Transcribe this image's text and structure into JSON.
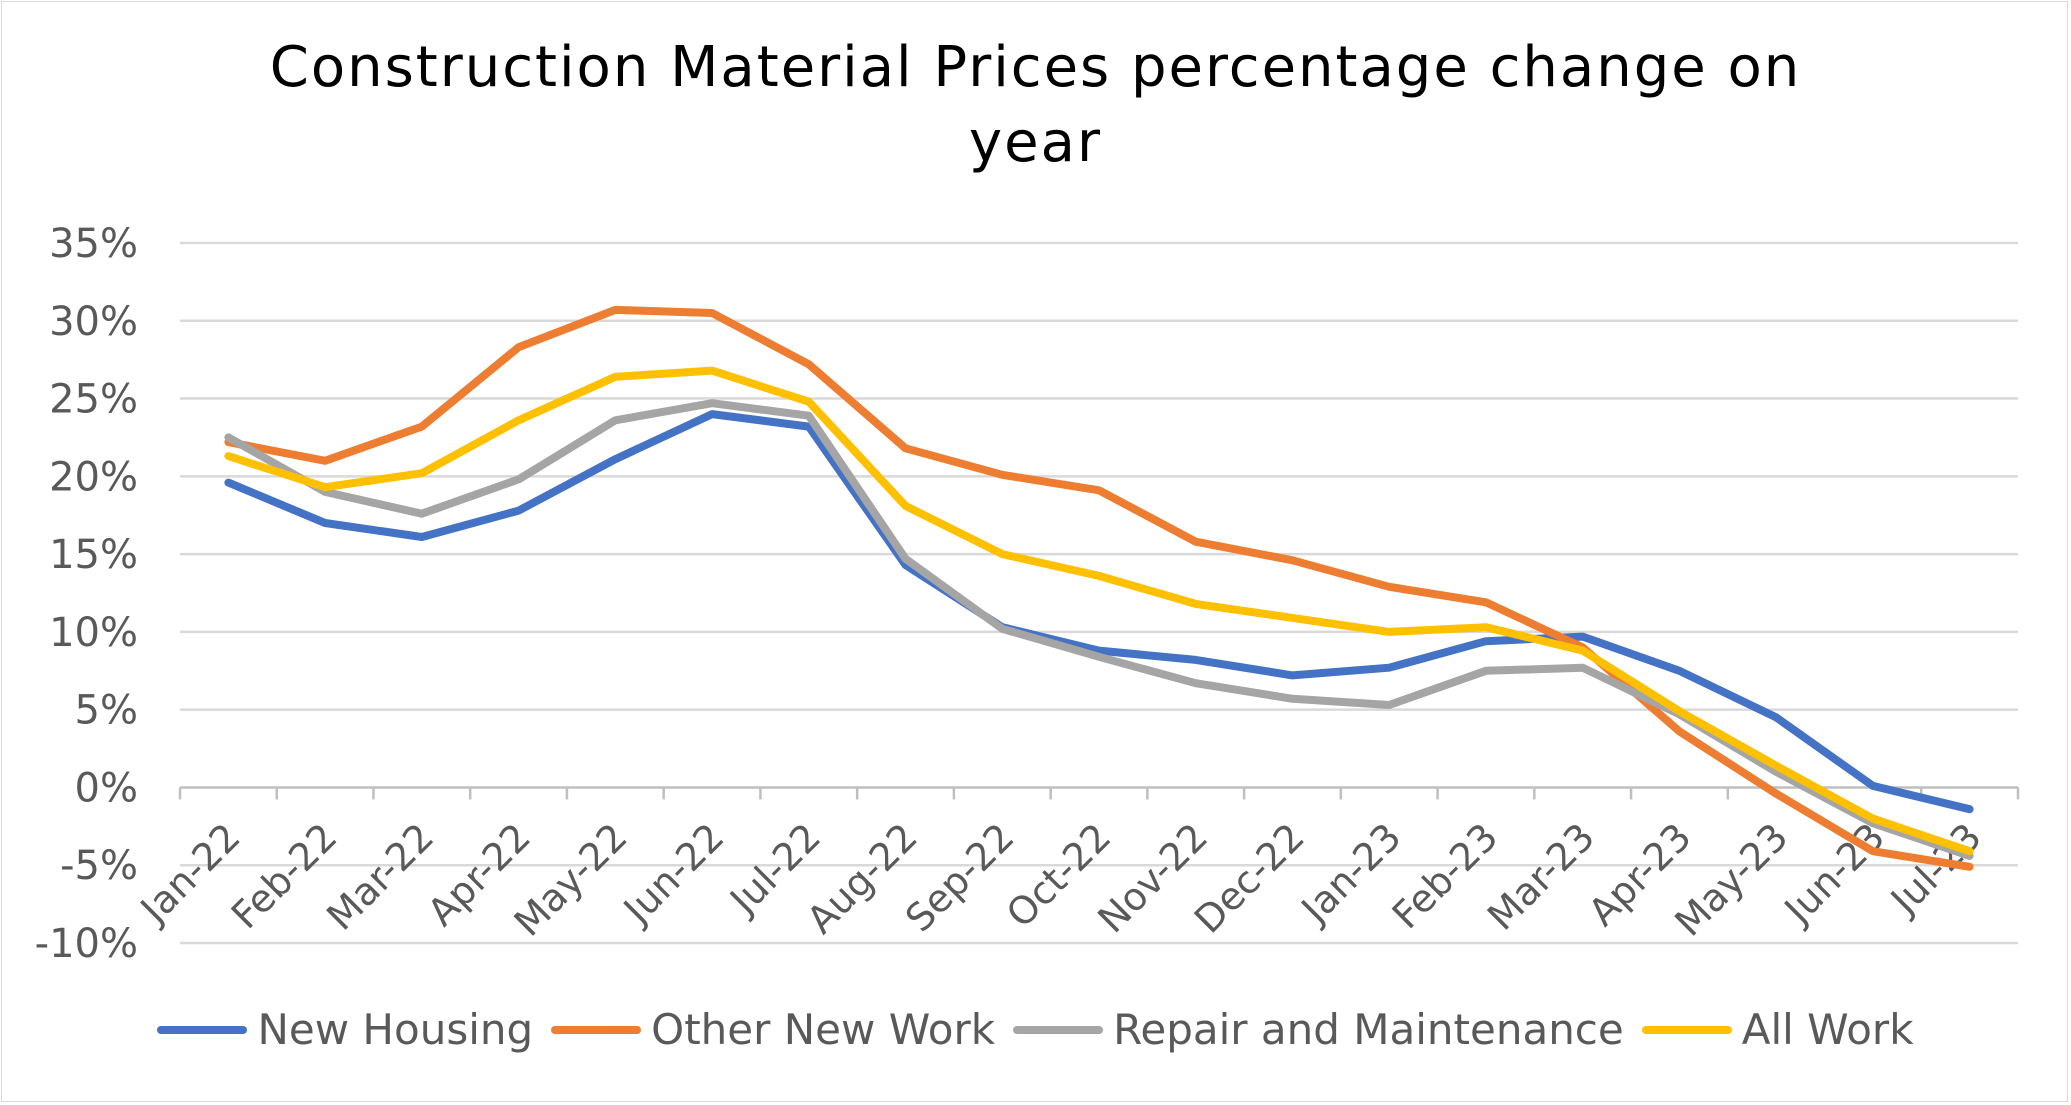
{
  "chart_data": {
    "type": "line",
    "title_line1": "Construction Material Prices percentage change on",
    "title_line2": "year",
    "xlabel": "",
    "ylabel": "",
    "ylim": [
      -10,
      35
    ],
    "yticks": [
      35,
      30,
      25,
      20,
      15,
      10,
      5,
      0,
      -5,
      -10
    ],
    "ytick_labels": [
      "35%",
      "30%",
      "25%",
      "20%",
      "15%",
      "10%",
      "5%",
      "0%",
      "-5%",
      "-10%"
    ],
    "grid": true,
    "legend_position": "bottom",
    "categories": [
      "Jan-22",
      "Feb-22",
      "Mar-22",
      "Apr-22",
      "May-22",
      "Jun-22",
      "Jul-22",
      "Aug-22",
      "Sep-22",
      "Oct-22",
      "Nov-22",
      "Dec-22",
      "Jan-23",
      "Feb-23",
      "Mar-23",
      "Apr-23",
      "May-23",
      "Jun-23",
      "Jul-23"
    ],
    "series": [
      {
        "name": "New Housing",
        "color": "#4472c4",
        "values": [
          19.6,
          17.0,
          16.1,
          17.8,
          21.1,
          24.0,
          23.2,
          14.3,
          10.3,
          8.8,
          8.2,
          7.2,
          7.7,
          9.4,
          9.7,
          7.5,
          4.5,
          0.1,
          -1.4
        ]
      },
      {
        "name": "Other New Work",
        "color": "#ed7d31",
        "values": [
          22.2,
          21.0,
          23.2,
          28.3,
          30.7,
          30.5,
          27.2,
          21.8,
          20.1,
          19.1,
          15.8,
          14.6,
          12.9,
          11.9,
          9.0,
          3.6,
          -0.4,
          -4.1,
          -5.1
        ]
      },
      {
        "name": "Repair and Maintenance",
        "color": "#a5a5a5",
        "values": [
          22.5,
          19.0,
          17.6,
          19.8,
          23.6,
          24.7,
          23.9,
          14.7,
          10.2,
          8.4,
          6.7,
          5.7,
          5.3,
          7.5,
          7.7,
          4.7,
          1.0,
          -2.3,
          -4.4
        ]
      },
      {
        "name": "All Work",
        "color": "#ffc000",
        "values": [
          21.3,
          19.3,
          20.2,
          23.6,
          26.4,
          26.8,
          24.8,
          18.1,
          15.0,
          13.6,
          11.8,
          10.9,
          10.0,
          10.3,
          8.8,
          4.9,
          1.4,
          -2.0,
          -4.1
        ]
      }
    ]
  },
  "colors": {
    "gridline": "#d9d9d9",
    "axis": "#bfbfbf",
    "text": "#595959"
  }
}
